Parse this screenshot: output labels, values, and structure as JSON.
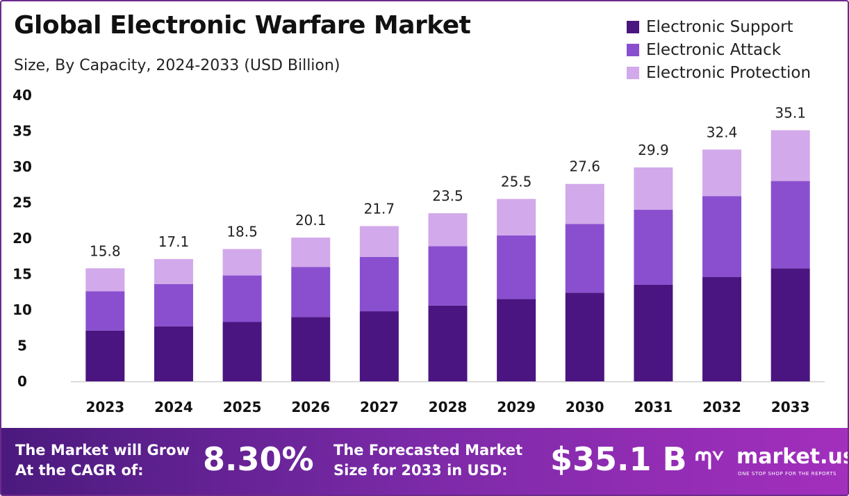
{
  "chart_data": {
    "type": "bar",
    "stacked": true,
    "title": "Global Electronic Warfare Market",
    "subtitle": "Size, By Capacity, 2024-2033 (USD Billion)",
    "categories": [
      "2023",
      "2024",
      "2025",
      "2026",
      "2027",
      "2028",
      "2029",
      "2030",
      "2031",
      "2032",
      "2033"
    ],
    "series": [
      {
        "name": "Electronic Support",
        "color": "#4a1580",
        "values": [
          7.1,
          7.7,
          8.3,
          9.0,
          9.8,
          10.6,
          11.5,
          12.4,
          13.5,
          14.6,
          15.8
        ]
      },
      {
        "name": "Electronic Attack",
        "color": "#8a4fcf",
        "values": [
          5.5,
          5.9,
          6.5,
          7.0,
          7.6,
          8.3,
          8.9,
          9.6,
          10.5,
          11.3,
          12.2
        ]
      },
      {
        "name": "Electronic Protection",
        "color": "#d2a9ea",
        "values": [
          3.2,
          3.5,
          3.7,
          4.1,
          4.3,
          4.6,
          5.1,
          5.6,
          5.9,
          6.5,
          7.1
        ]
      }
    ],
    "totals": [
      "15.8",
      "17.1",
      "18.5",
      "20.1",
      "21.7",
      "23.5",
      "25.5",
      "27.6",
      "29.9",
      "32.4",
      "35.1"
    ],
    "yticks": [
      "0",
      "5",
      "10",
      "15",
      "20",
      "25",
      "30",
      "35",
      "40"
    ],
    "ylim": [
      0,
      40
    ],
    "legend_position": "top-right",
    "grid": false
  },
  "footer": {
    "cagr_label_1": "The Market will Grow",
    "cagr_label_2": "At the CAGR of:",
    "cagr_value": "8.30%",
    "forecast_label_1": "The Forecasted Market",
    "forecast_label_2": "Size for 2033 in USD:",
    "forecast_value": "$35.1 B",
    "logo_text": "market.us",
    "logo_tagline": "ONE STOP SHOP FOR THE REPORTS"
  }
}
